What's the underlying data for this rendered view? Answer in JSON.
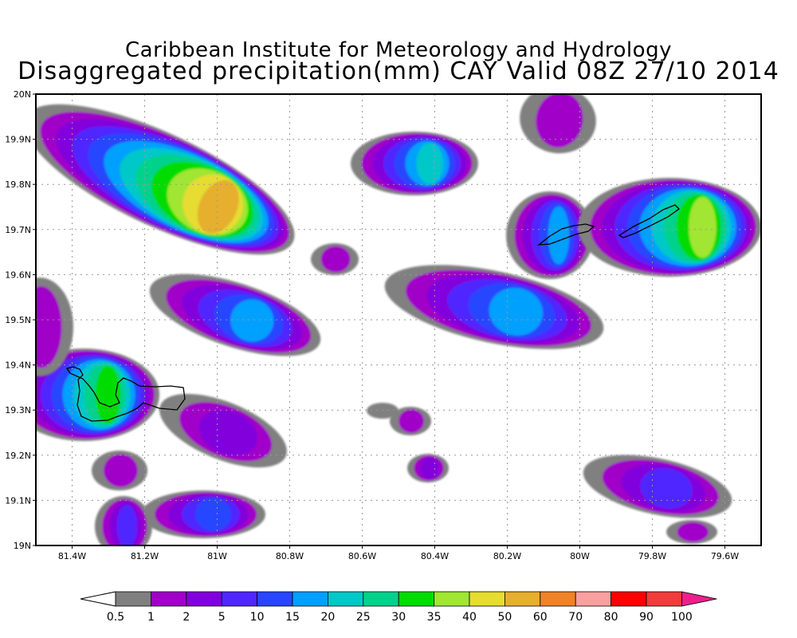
{
  "title": {
    "line1": "Caribbean Institute for Meteorology and Hydrology",
    "line2": "Disaggregated precipitation(mm) CAY Valid 08Z 27/10 2014"
  },
  "chart_data": {
    "type": "heatmap",
    "title": "Disaggregated precipitation(mm) CAY Valid 08Z 27/10 2014",
    "xlim": [
      -81.5,
      -79.5
    ],
    "ylim": [
      19.0,
      20.0
    ],
    "grid": true,
    "x_ticks": [
      {
        "value": -81.4,
        "label": "81.4W"
      },
      {
        "value": -81.2,
        "label": "81.2W"
      },
      {
        "value": -81.0,
        "label": "81W"
      },
      {
        "value": -80.8,
        "label": "80.8W"
      },
      {
        "value": -80.6,
        "label": "80.6W"
      },
      {
        "value": -80.4,
        "label": "80.4W"
      },
      {
        "value": -80.2,
        "label": "80.2W"
      },
      {
        "value": -80.0,
        "label": "80W"
      },
      {
        "value": -79.8,
        "label": "79.8W"
      },
      {
        "value": -79.6,
        "label": "79.6W"
      }
    ],
    "y_ticks": [
      {
        "value": 19.0,
        "label": "19N"
      },
      {
        "value": 19.1,
        "label": "19.1N"
      },
      {
        "value": 19.2,
        "label": "19.2N"
      },
      {
        "value": 19.3,
        "label": "19.3N"
      },
      {
        "value": 19.4,
        "label": "19.4N"
      },
      {
        "value": 19.5,
        "label": "19.5N"
      },
      {
        "value": 19.6,
        "label": "19.6N"
      },
      {
        "value": 19.7,
        "label": "19.7N"
      },
      {
        "value": 19.8,
        "label": "19.8N"
      },
      {
        "value": 19.9,
        "label": "19.9N"
      },
      {
        "value": 20.0,
        "label": "20N"
      }
    ],
    "legend": {
      "placement": "bottom",
      "labels": [
        "0.5",
        "1",
        "2",
        "5",
        "10",
        "15",
        "20",
        "25",
        "30",
        "35",
        "40",
        "50",
        "60",
        "70",
        "80",
        "90",
        "100"
      ],
      "colors": [
        "#ffffff",
        "#808080",
        "#a000c8",
        "#8200dc",
        "#5028ff",
        "#2846ff",
        "#00a0ff",
        "#00c8c8",
        "#00d28c",
        "#00dc00",
        "#a0e632",
        "#e6dc32",
        "#e6af2d",
        "#f08228",
        "#faa0a0",
        "#ff0000",
        "#f03c3c",
        "#f01e8c"
      ]
    }
  }
}
